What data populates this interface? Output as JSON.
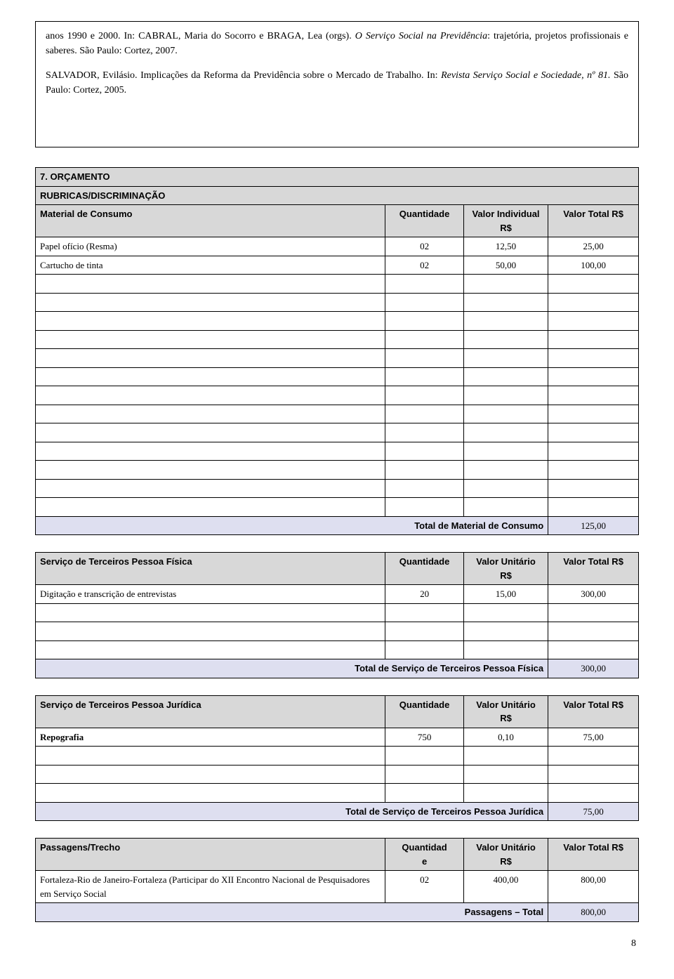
{
  "references": {
    "p1_parts": [
      {
        "t": "anos 1990 e 2000. In: CABRAL, Maria do Socorro e BRAGA, Lea (orgs). "
      },
      {
        "t": "O Serviço Social na Previdência",
        "i": true
      },
      {
        "t": ": trajetória, projetos profissionais e saberes. São Paulo: Cortez, 2007."
      }
    ],
    "p2_parts": [
      {
        "t": "SALVADOR, Evilásio. Implicações da Reforma da Previdência sobre o Mercado de Trabalho. In: "
      },
      {
        "t": "Revista Serviço Social e Sociedade, nº 81.",
        "i": true
      },
      {
        "t": " São Paulo: Cortez, 2005."
      }
    ]
  },
  "budget": {
    "section_title": "7. ORÇAMENTO",
    "rubric_label": "RUBRICAS/DISCRIMINAÇÃO",
    "cols": {
      "desc": "Material de Consumo",
      "qty": "Quantidade",
      "unit_val_lines": [
        "Valor Individual",
        "R$"
      ],
      "total_val": "Valor Total R$"
    },
    "rows": [
      {
        "desc": "Papel ofício (Resma)",
        "qty": "02",
        "unit": "12,50",
        "total": "25,00"
      },
      {
        "desc": "Cartucho de tinta",
        "qty": "02",
        "unit": "50,00",
        "total": "100,00"
      }
    ],
    "empty_rows": 13,
    "total_label": "Total de Material de Consumo",
    "total_value": "125,00"
  },
  "svc_fisica": {
    "cols": {
      "desc": "Serviço de Terceiros Pessoa Física",
      "qty": "Quantidade",
      "unit_val_lines": [
        "Valor Unitário",
        "R$"
      ],
      "total_val": "Valor Total R$"
    },
    "rows": [
      {
        "desc": "Digitação e transcrição de entrevistas",
        "qty": "20",
        "unit": "15,00",
        "total": "300,00"
      }
    ],
    "empty_rows": 3,
    "total_label": "Total de Serviço de Terceiros Pessoa Física",
    "total_value": "300,00"
  },
  "svc_juridica": {
    "cols": {
      "desc": "Serviço de Terceiros Pessoa Jurídica",
      "qty": "Quantidade",
      "unit_val_lines": [
        "Valor Unitário",
        "R$"
      ],
      "total_val": "Valor Total R$"
    },
    "rows": [
      {
        "desc": "Repografia",
        "qty": "750",
        "unit": "0,10",
        "total": "75,00"
      }
    ],
    "empty_rows": 3,
    "total_label": "Total de Serviço de Terceiros Pessoa Jurídica",
    "total_value": "75,00"
  },
  "passagens": {
    "cols": {
      "desc": "Passagens/Trecho",
      "qty_lines": [
        "Quantidad",
        "e"
      ],
      "unit_val_lines": [
        "Valor Unitário",
        "R$"
      ],
      "total_val": "Valor Total R$"
    },
    "rows": [
      {
        "desc": "Fortaleza-Rio de Janeiro-Fortaleza (Participar do XII Encontro Nacional de Pesquisadores em Serviço Social",
        "qty": "02",
        "unit": "400,00",
        "total": "800,00"
      }
    ],
    "total_label": "Passagens – Total",
    "total_value": "800,00"
  },
  "page_number": "8",
  "colors": {
    "grey_header": "#d8d8d8",
    "lavender_total": "#dedff0",
    "border": "#000000",
    "background": "#ffffff",
    "text": "#000000"
  },
  "col_widths": [
    "58%",
    "13%",
    "14%",
    "15%"
  ]
}
